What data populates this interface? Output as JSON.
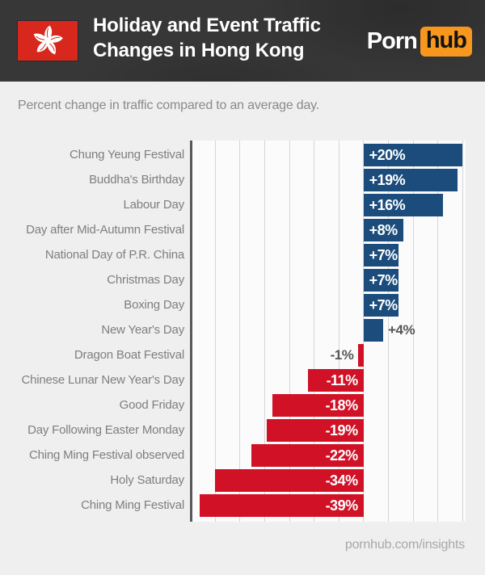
{
  "header": {
    "title_line1": "Holiday and Event Traffic",
    "title_line2": "Changes in Hong Kong",
    "brand": {
      "porn": "Porn",
      "hub": "hub"
    },
    "flag_icon": "hong-kong-flag"
  },
  "subtitle": "Percent change in traffic compared to an average day.",
  "footer": "pornhub.com/insights",
  "colors": {
    "positive_bar": "#1b4c7c",
    "negative_bar": "#d01126",
    "header_bg": "#373737",
    "brand_orange": "#f7971e",
    "flag_red": "#d8281d",
    "page_bg": "#f0efef"
  },
  "chart_data": {
    "type": "bar",
    "orientation": "horizontal",
    "unit": "%",
    "title": "Holiday and Event Traffic Changes in Hong Kong",
    "subtitle": "Percent change in traffic compared to an average day.",
    "grid": true,
    "gridline_step_pct": 5,
    "xlim": [
      -35,
      20
    ],
    "categories": [
      "Chung Yeung Festival",
      "Buddha's Birthday",
      "Labour Day",
      "Day after Mid-Autumn Festival",
      "National Day of P.R. China",
      "Christmas Day",
      "Boxing Day",
      "New Year's Day",
      "Dragon Boat Festival",
      "Chinese Lunar New Year's Day",
      "Good Friday",
      "Day Following Easter Monday",
      "Ching Ming Festival observed",
      "Holy Saturday",
      "Ching Ming Festival"
    ],
    "values": [
      20,
      19,
      16,
      8,
      7,
      7,
      7,
      4,
      -1,
      -11,
      -18,
      -19,
      -22,
      -34,
      -39
    ],
    "value_labels": [
      "+20%",
      "+19%",
      "+16%",
      "+8%",
      "+7%",
      "+7%",
      "+7%",
      "+4%",
      "-1%",
      "-11%",
      "-18%",
      "-19%",
      "-22%",
      "-34%",
      "-39%"
    ]
  }
}
